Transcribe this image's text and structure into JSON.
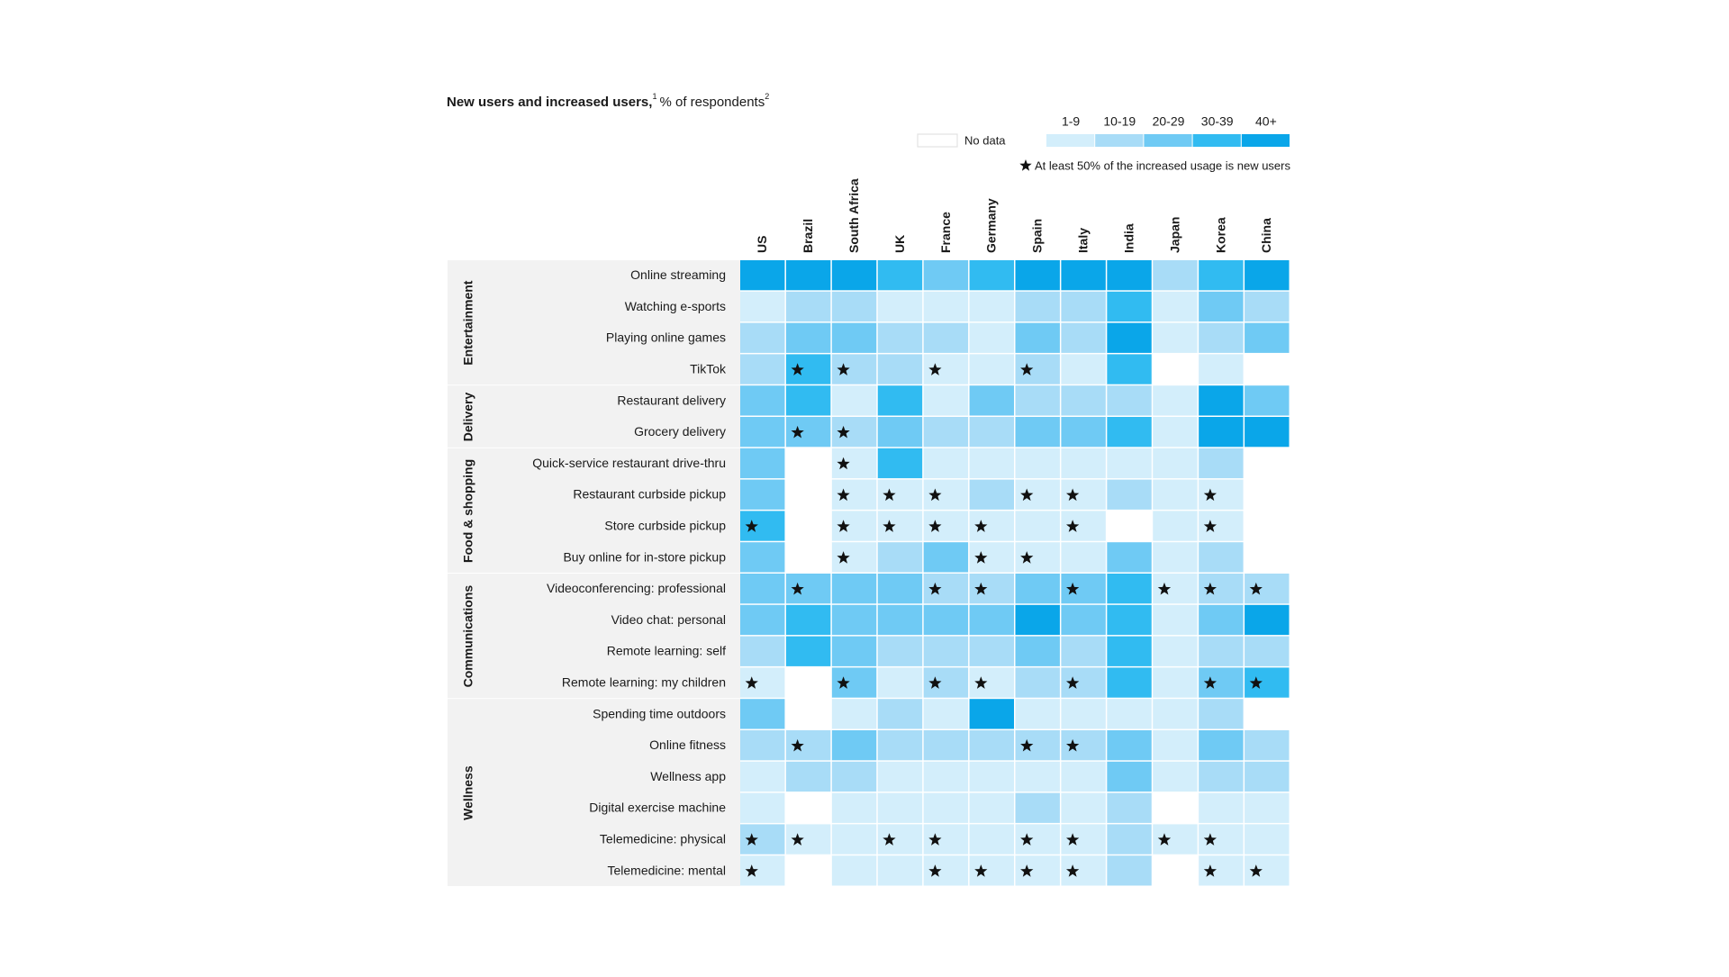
{
  "chart_data": {
    "type": "heatmap",
    "title": "New users and increased users,",
    "title_note": "1",
    "subtitle": "% of respondents",
    "subtitle_note": "2",
    "legend": {
      "no_data": "No data",
      "no_data_color": "#ffffff",
      "bins": [
        {
          "label": "1-9",
          "color": "#d3eefb"
        },
        {
          "label": "10-19",
          "color": "#a8dcf7"
        },
        {
          "label": "20-29",
          "color": "#6fcaf4"
        },
        {
          "label": "30-39",
          "color": "#31bbf1"
        },
        {
          "label": "40+",
          "color": "#0aa6e9"
        }
      ],
      "star_note": "At least 50% of the increased usage is new users"
    },
    "categories": [
      "US",
      "Brazil",
      "South Africa",
      "UK",
      "France",
      "Germany",
      "Spain",
      "Italy",
      "India",
      "Japan",
      "Korea",
      "China"
    ],
    "groups": [
      {
        "name": "Entertainment",
        "rows": [
          {
            "name": "Online streaming",
            "values": [
              4,
              4,
              4,
              3,
              2,
              3,
              4,
              4,
              4,
              1,
              3,
              4
            ],
            "stars": [
              false,
              false,
              false,
              false,
              false,
              false,
              false,
              false,
              false,
              false,
              false,
              false
            ]
          },
          {
            "name": "Watching e-sports",
            "values": [
              0,
              1,
              1,
              0,
              0,
              0,
              1,
              1,
              3,
              0,
              2,
              1
            ],
            "stars": [
              false,
              false,
              false,
              false,
              false,
              false,
              false,
              false,
              false,
              false,
              false,
              false
            ]
          },
          {
            "name": "Playing online games",
            "values": [
              1,
              2,
              2,
              1,
              1,
              0,
              2,
              1,
              4,
              0,
              1,
              2
            ],
            "stars": [
              false,
              false,
              false,
              false,
              false,
              false,
              false,
              false,
              false,
              false,
              false,
              false
            ]
          },
          {
            "name": "TikTok",
            "values": [
              1,
              3,
              1,
              1,
              0,
              0,
              1,
              0,
              3,
              null,
              0,
              null
            ],
            "stars": [
              false,
              true,
              true,
              false,
              true,
              false,
              true,
              false,
              false,
              false,
              false,
              false
            ]
          }
        ]
      },
      {
        "name": "Delivery",
        "rows": [
          {
            "name": "Restaurant delivery",
            "values": [
              2,
              3,
              0,
              3,
              0,
              2,
              1,
              1,
              1,
              0,
              4,
              2
            ],
            "stars": [
              false,
              false,
              false,
              false,
              false,
              false,
              false,
              false,
              false,
              false,
              false,
              false
            ]
          },
          {
            "name": "Grocery delivery",
            "values": [
              2,
              2,
              1,
              2,
              1,
              1,
              2,
              2,
              3,
              0,
              4,
              4
            ],
            "stars": [
              false,
              true,
              true,
              false,
              false,
              false,
              false,
              false,
              false,
              false,
              false,
              false
            ]
          }
        ]
      },
      {
        "name": "Food & shopping",
        "rows": [
          {
            "name": "Quick-service restaurant drive-thru",
            "values": [
              2,
              null,
              0,
              3,
              0,
              0,
              0,
              0,
              0,
              0,
              1,
              null
            ],
            "stars": [
              false,
              false,
              true,
              false,
              false,
              false,
              false,
              false,
              false,
              false,
              false,
              false
            ]
          },
          {
            "name": "Restaurant curbside pickup",
            "values": [
              2,
              null,
              0,
              0,
              0,
              1,
              0,
              0,
              1,
              0,
              0,
              null
            ],
            "stars": [
              false,
              false,
              true,
              true,
              true,
              false,
              true,
              true,
              false,
              false,
              true,
              false
            ]
          },
          {
            "name": "Store curbside pickup",
            "values": [
              3,
              null,
              0,
              0,
              0,
              0,
              0,
              0,
              null,
              0,
              0,
              null
            ],
            "stars": [
              true,
              false,
              true,
              true,
              true,
              true,
              false,
              true,
              false,
              false,
              true,
              false
            ]
          },
          {
            "name": "Buy online for in-store pickup",
            "values": [
              2,
              null,
              0,
              1,
              2,
              0,
              0,
              0,
              2,
              0,
              1,
              null
            ],
            "stars": [
              false,
              false,
              true,
              false,
              false,
              true,
              true,
              false,
              false,
              false,
              false,
              false
            ]
          }
        ]
      },
      {
        "name": "Communications",
        "rows": [
          {
            "name": "Videoconferencing: professional",
            "values": [
              2,
              2,
              2,
              2,
              1,
              1,
              2,
              2,
              3,
              0,
              1,
              1
            ],
            "stars": [
              false,
              true,
              false,
              false,
              true,
              true,
              false,
              true,
              false,
              true,
              true,
              true
            ]
          },
          {
            "name": "Video chat: personal",
            "values": [
              2,
              3,
              2,
              2,
              2,
              2,
              4,
              2,
              3,
              0,
              2,
              4
            ],
            "stars": [
              false,
              false,
              false,
              false,
              false,
              false,
              false,
              false,
              false,
              false,
              false,
              false
            ]
          },
          {
            "name": "Remote learning: self",
            "values": [
              1,
              3,
              2,
              1,
              1,
              1,
              2,
              1,
              3,
              0,
              1,
              1
            ],
            "stars": [
              false,
              false,
              false,
              false,
              false,
              false,
              false,
              false,
              false,
              false,
              false,
              false
            ]
          },
          {
            "name": "Remote learning: my children",
            "values": [
              0,
              null,
              2,
              0,
              1,
              0,
              1,
              1,
              3,
              0,
              2,
              3
            ],
            "stars": [
              true,
              false,
              true,
              false,
              true,
              true,
              false,
              true,
              false,
              false,
              true,
              true
            ]
          }
        ]
      },
      {
        "name": "Wellness",
        "rows": [
          {
            "name": "Spending time outdoors",
            "values": [
              2,
              null,
              0,
              1,
              0,
              4,
              0,
              0,
              0,
              0,
              1,
              null
            ],
            "stars": [
              false,
              false,
              false,
              false,
              false,
              false,
              false,
              false,
              false,
              false,
              false,
              false
            ]
          },
          {
            "name": "Online fitness",
            "values": [
              1,
              1,
              2,
              1,
              1,
              1,
              1,
              1,
              2,
              0,
              2,
              1
            ],
            "stars": [
              false,
              true,
              false,
              false,
              false,
              false,
              true,
              true,
              false,
              false,
              false,
              false
            ]
          },
          {
            "name": "Wellness app",
            "values": [
              0,
              1,
              1,
              0,
              0,
              0,
              0,
              0,
              2,
              0,
              1,
              1
            ],
            "stars": [
              false,
              false,
              false,
              false,
              false,
              false,
              false,
              false,
              false,
              false,
              false,
              false
            ]
          },
          {
            "name": "Digital exercise machine",
            "values": [
              0,
              null,
              0,
              0,
              0,
              0,
              1,
              0,
              1,
              null,
              0,
              0
            ],
            "stars": [
              false,
              false,
              false,
              false,
              false,
              false,
              false,
              false,
              false,
              false,
              false,
              false
            ]
          },
          {
            "name": "Telemedicine: physical",
            "values": [
              1,
              0,
              0,
              0,
              0,
              0,
              0,
              0,
              1,
              0,
              0,
              0
            ],
            "stars": [
              true,
              true,
              false,
              true,
              true,
              false,
              true,
              true,
              false,
              true,
              true,
              false
            ]
          },
          {
            "name": "Telemedicine: mental",
            "values": [
              0,
              null,
              0,
              0,
              0,
              0,
              0,
              0,
              1,
              null,
              0,
              0
            ],
            "stars": [
              true,
              false,
              false,
              false,
              true,
              true,
              true,
              true,
              false,
              false,
              true,
              true
            ]
          }
        ]
      }
    ]
  }
}
